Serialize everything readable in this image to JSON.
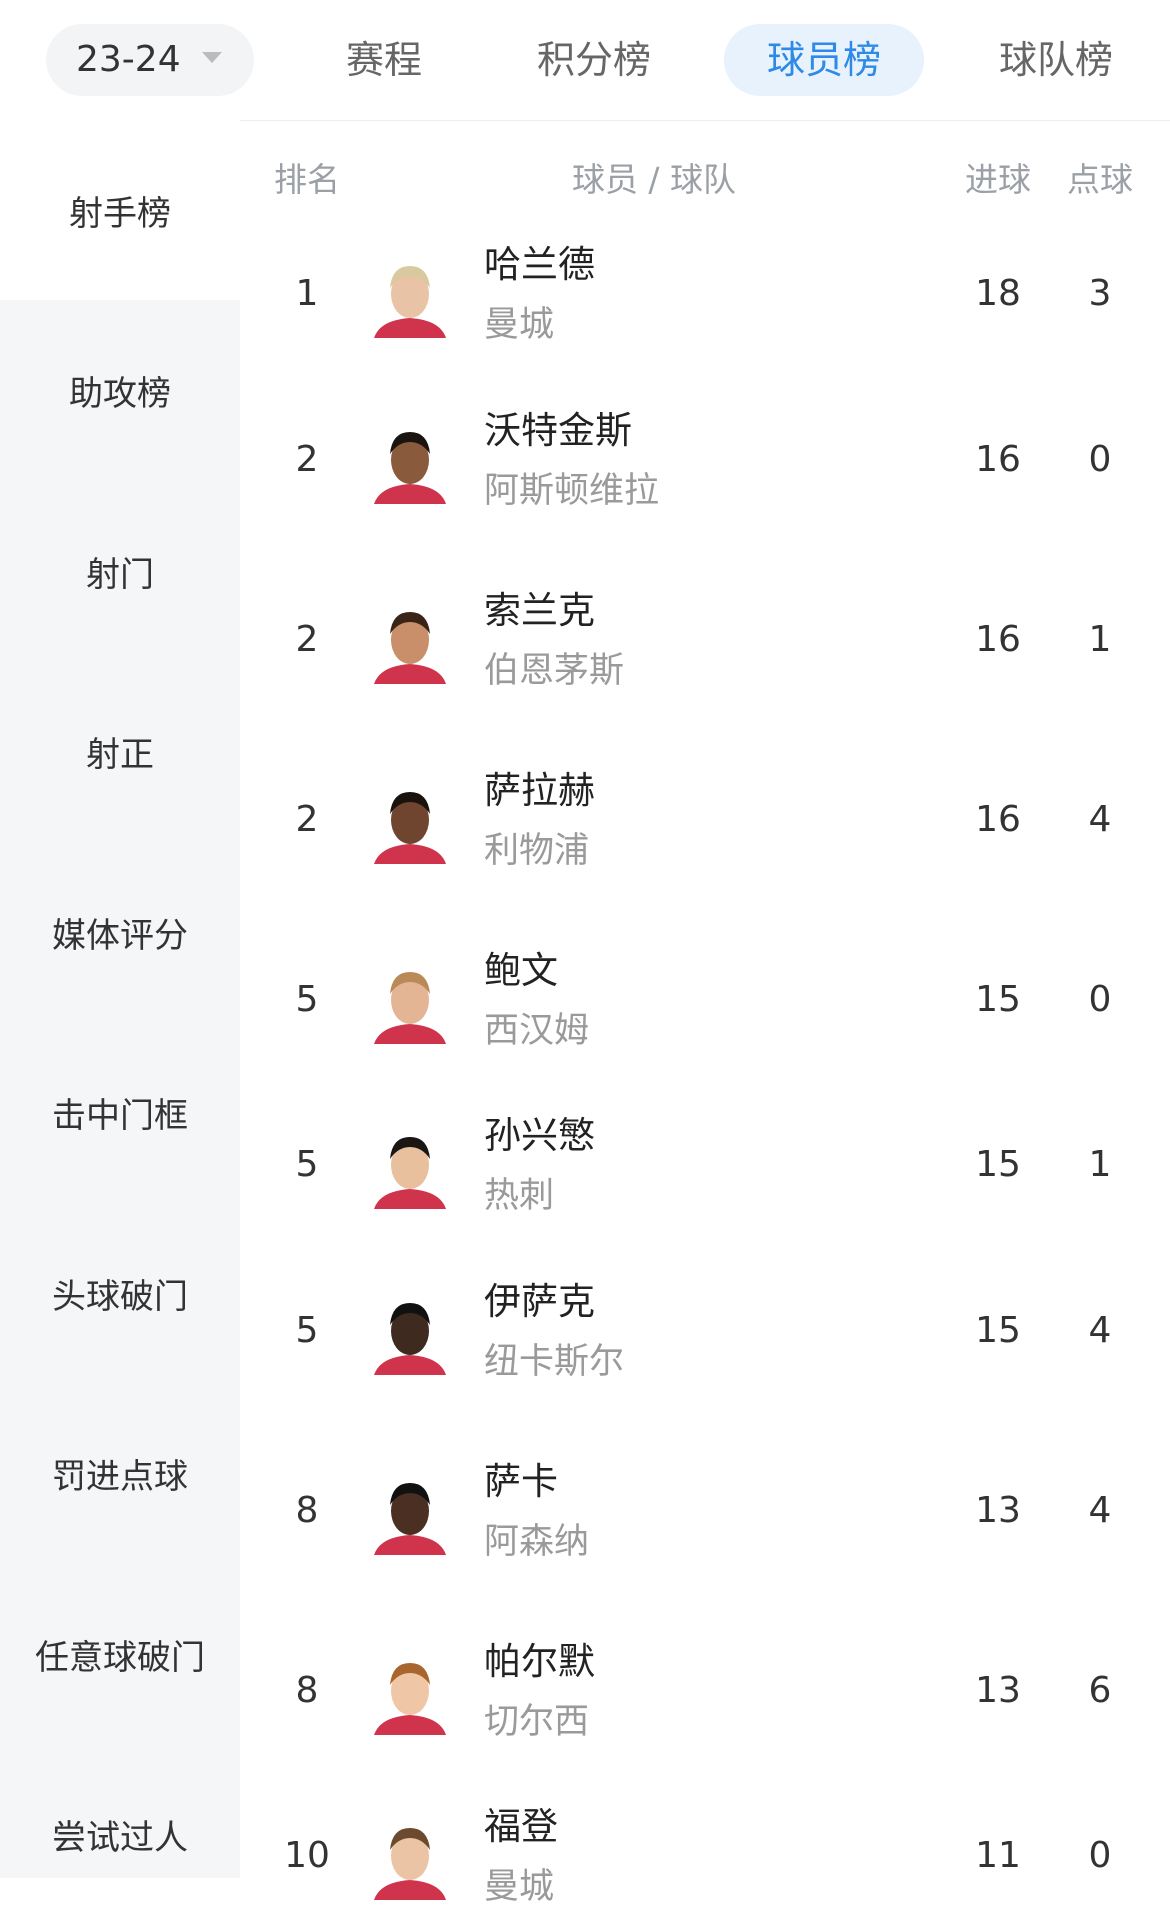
{
  "header": {
    "season": "23-24",
    "tabs": [
      "赛程",
      "积分榜",
      "球员榜",
      "球队榜"
    ],
    "active_tab": 2
  },
  "sidebar": {
    "items": [
      "射手榜",
      "助攻榜",
      "射门",
      "射正",
      "媒体评分",
      "击中门框",
      "头球破门",
      "罚进点球",
      "任意球破门",
      "尝试过人"
    ],
    "active": 0
  },
  "table": {
    "columns": [
      "排名",
      "球员 / 球队",
      "进球",
      "点球"
    ],
    "rows": [
      [
        "1",
        "哈兰德",
        "曼城",
        "18",
        "3"
      ],
      [
        "2",
        "沃特金斯",
        "阿斯顿维拉",
        "16",
        "0"
      ],
      [
        "2",
        "索兰克",
        "伯恩茅斯",
        "16",
        "1"
      ],
      [
        "2",
        "萨拉赫",
        "利物浦",
        "16",
        "4"
      ],
      [
        "5",
        "鲍文",
        "西汉姆",
        "15",
        "0"
      ],
      [
        "5",
        "孙兴慜",
        "热刺",
        "15",
        "1"
      ],
      [
        "5",
        "伊萨克",
        "纽卡斯尔",
        "15",
        "4"
      ],
      [
        "8",
        "萨卡",
        "阿森纳",
        "13",
        "4"
      ],
      [
        "8",
        "帕尔默",
        "切尔西",
        "13",
        "6"
      ],
      [
        "10",
        "福登",
        "曼城",
        "11",
        "0"
      ]
    ]
  }
}
